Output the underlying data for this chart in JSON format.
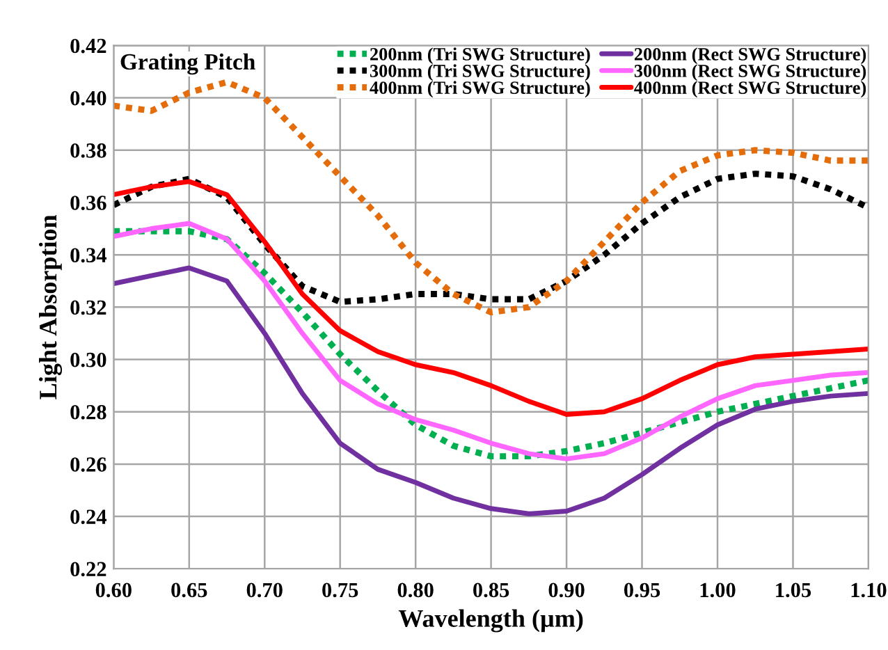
{
  "chart_data": {
    "type": "line",
    "xlabel": "Wavelength (µm)",
    "ylabel": "Light Absorption",
    "legend_title": "Grating Pitch",
    "x": [
      0.6,
      0.625,
      0.65,
      0.675,
      0.7,
      0.725,
      0.75,
      0.775,
      0.8,
      0.825,
      0.85,
      0.875,
      0.9,
      0.925,
      0.95,
      0.975,
      1.0,
      1.025,
      1.05,
      1.075,
      1.1
    ],
    "series": [
      {
        "name": "200nm (Tri SWG Structure)",
        "color": "#00b050",
        "line_style": "dotted",
        "values": [
          0.349,
          0.349,
          0.349,
          0.346,
          0.333,
          0.318,
          0.302,
          0.288,
          0.275,
          0.267,
          0.263,
          0.263,
          0.265,
          0.268,
          0.272,
          0.276,
          0.28,
          0.283,
          0.286,
          0.289,
          0.292
        ]
      },
      {
        "name": "300nm (Tri SWG Structure)",
        "color": "#000000",
        "line_style": "dotted",
        "values": [
          0.359,
          0.366,
          0.369,
          0.362,
          0.344,
          0.328,
          0.322,
          0.323,
          0.325,
          0.325,
          0.323,
          0.323,
          0.33,
          0.34,
          0.352,
          0.362,
          0.369,
          0.371,
          0.37,
          0.365,
          0.358
        ]
      },
      {
        "name": "400nm (Tri SWG Structure)",
        "color": "#e46c0a",
        "line_style": "dotted",
        "values": [
          0.397,
          0.395,
          0.402,
          0.406,
          0.4,
          0.385,
          0.37,
          0.355,
          0.337,
          0.325,
          0.318,
          0.32,
          0.33,
          0.345,
          0.36,
          0.372,
          0.378,
          0.38,
          0.379,
          0.376,
          0.376
        ]
      },
      {
        "name": "200nm (Rect SWG Structure)",
        "color": "#7030a0",
        "line_style": "solid",
        "values": [
          0.329,
          0.332,
          0.335,
          0.33,
          0.31,
          0.287,
          0.268,
          0.258,
          0.253,
          0.247,
          0.243,
          0.241,
          0.242,
          0.247,
          0.256,
          0.266,
          0.275,
          0.281,
          0.284,
          0.286,
          0.287
        ]
      },
      {
        "name": "300nm (Rect SWG Structure)",
        "color": "#ff66ff",
        "line_style": "solid",
        "values": [
          0.347,
          0.35,
          0.352,
          0.346,
          0.33,
          0.31,
          0.292,
          0.283,
          0.277,
          0.273,
          0.268,
          0.264,
          0.262,
          0.264,
          0.27,
          0.278,
          0.285,
          0.29,
          0.292,
          0.294,
          0.295
        ]
      },
      {
        "name": "400nm (Rect SWG Structure)",
        "color": "#ff0000",
        "line_style": "solid",
        "values": [
          0.363,
          0.366,
          0.368,
          0.363,
          0.345,
          0.325,
          0.311,
          0.303,
          0.298,
          0.295,
          0.29,
          0.284,
          0.279,
          0.28,
          0.285,
          0.292,
          0.298,
          0.301,
          0.302,
          0.303,
          0.304
        ]
      }
    ],
    "xlim": [
      0.6,
      1.1
    ],
    "xticks": [
      {
        "value": 0.6,
        "label": "0.60"
      },
      {
        "value": 0.65,
        "label": "0.65"
      },
      {
        "value": 0.7,
        "label": "0.70"
      },
      {
        "value": 0.75,
        "label": "0.75"
      },
      {
        "value": 0.8,
        "label": "0.80"
      },
      {
        "value": 0.85,
        "label": "0.85"
      },
      {
        "value": 0.9,
        "label": "0.90"
      },
      {
        "value": 0.95,
        "label": "0.95"
      },
      {
        "value": 1.0,
        "label": "1.00"
      },
      {
        "value": 1.05,
        "label": "1.05"
      },
      {
        "value": 1.1,
        "label": "1.10"
      }
    ],
    "ylim": [
      0.22,
      0.42
    ],
    "yticks": [
      {
        "value": 0.22,
        "label": "0.22"
      },
      {
        "value": 0.24,
        "label": "0.24"
      },
      {
        "value": 0.26,
        "label": "0.26"
      },
      {
        "value": 0.28,
        "label": "0.28"
      },
      {
        "value": 0.3,
        "label": "0.30"
      },
      {
        "value": 0.32,
        "label": "0.32"
      },
      {
        "value": 0.34,
        "label": "0.34"
      },
      {
        "value": 0.36,
        "label": "0.36"
      },
      {
        "value": 0.38,
        "label": "0.38"
      },
      {
        "value": 0.4,
        "label": "0.40"
      },
      {
        "value": 0.42,
        "label": "0.42"
      }
    ],
    "grid": true,
    "legend": "top right"
  }
}
